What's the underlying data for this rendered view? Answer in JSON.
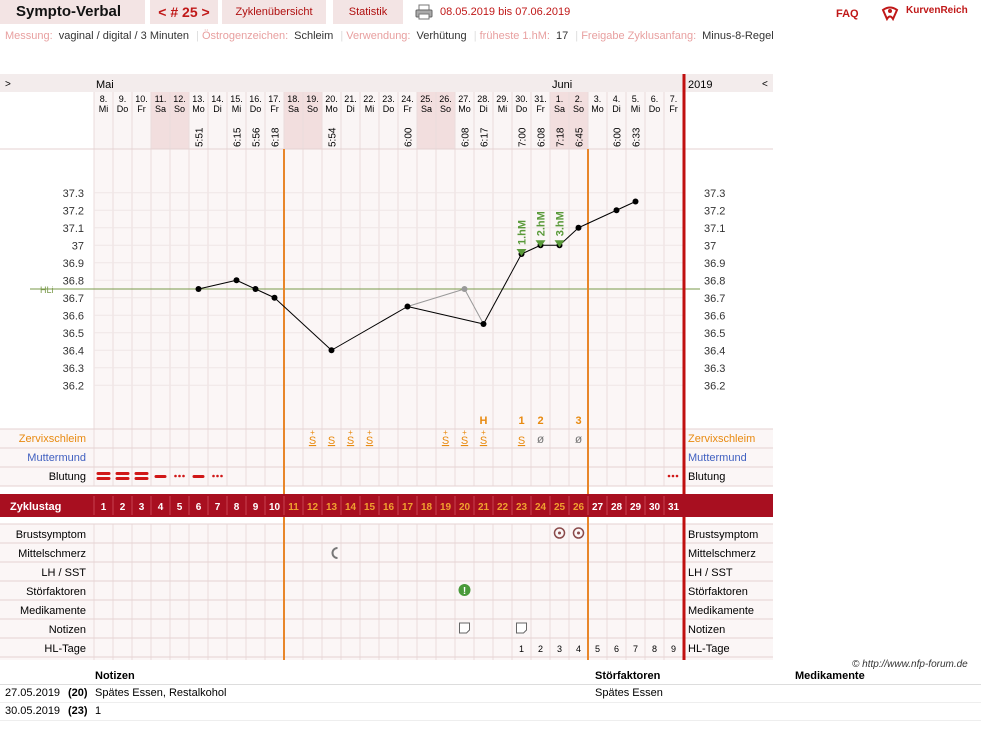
{
  "header": {
    "brand": "Sympto-Verbal",
    "cycle_nav": "< # 25 >",
    "tab_overview": "Zyklenübersicht",
    "tab_stats": "Statistik",
    "date_range": "08.05.2019 bis 07.06.2019",
    "faq": "FAQ",
    "logo_text": "KurvenReich"
  },
  "settings": [
    {
      "key": "Messung:",
      "value": "vaginal / digital / 3 Minuten"
    },
    {
      "key": "Östrogenzeichen:",
      "value": "Schleim"
    },
    {
      "key": "Verwendung:",
      "value": "Verhütung"
    },
    {
      "key": "früheste 1.hM:",
      "value": "17"
    },
    {
      "key": "Freigabe Zyklusanfang:",
      "value": "Minus-8-Regel"
    }
  ],
  "chart_data": {
    "type": "line",
    "nav_prev": ">",
    "nav_next": "<",
    "months": [
      {
        "label": "Mai",
        "day_index": 0
      },
      {
        "label": "Juni",
        "day_index": 24
      }
    ],
    "year": "2019",
    "dates": [
      "8.",
      "9.",
      "10.",
      "11.",
      "12.",
      "13.",
      "14.",
      "15.",
      "16.",
      "17.",
      "18.",
      "19.",
      "20.",
      "21.",
      "22.",
      "23.",
      "24.",
      "25.",
      "26.",
      "27.",
      "28.",
      "29.",
      "30.",
      "31.",
      "1.",
      "2.",
      "3.",
      "4.",
      "5.",
      "6.",
      "7."
    ],
    "weekdays": [
      "Mi",
      "Do",
      "Fr",
      "Sa",
      "So",
      "Mo",
      "Di",
      "Mi",
      "Do",
      "Fr",
      "Sa",
      "So",
      "Mo",
      "Di",
      "Mi",
      "Do",
      "Fr",
      "Sa",
      "So",
      "Mo",
      "Di",
      "Mi",
      "Do",
      "Fr",
      "Sa",
      "So",
      "Mo",
      "Di",
      "Mi",
      "Do",
      "Fr"
    ],
    "times": [
      "",
      "",
      "",
      "",
      "",
      "5:51",
      "",
      "6:15",
      "5:56",
      "6:18",
      "",
      "",
      "5:54",
      "",
      "",
      "",
      "6:00",
      "",
      "",
      "6:08",
      "6:17",
      "",
      "7:00",
      "6:08",
      "7:18",
      "6:45",
      "",
      "6:00",
      "6:33",
      "",
      ""
    ],
    "cycle_days": [
      1,
      2,
      3,
      4,
      5,
      6,
      7,
      8,
      9,
      10,
      11,
      12,
      13,
      14,
      15,
      16,
      17,
      18,
      19,
      20,
      21,
      22,
      23,
      24,
      25,
      26,
      27,
      28,
      29,
      30,
      31
    ],
    "temperatures": [
      null,
      null,
      null,
      null,
      null,
      36.75,
      null,
      36.8,
      36.75,
      36.7,
      null,
      null,
      36.4,
      null,
      null,
      null,
      36.65,
      null,
      null,
      36.75,
      36.55,
      null,
      36.95,
      37.0,
      37.0,
      37.1,
      null,
      37.2,
      37.25,
      null,
      null
    ],
    "excluded_days": [
      19
    ],
    "ylim": [
      36.1,
      37.4
    ],
    "yticks": [
      36.2,
      36.3,
      36.4,
      36.5,
      36.6,
      36.7,
      36.8,
      36.9,
      37.0,
      37.1,
      37.2,
      37.3
    ],
    "ytick_labels": [
      "36.2",
      "36.3",
      "36.4",
      "36.5",
      "36.6",
      "36.7",
      "36.8",
      "36.9",
      "37",
      "37.1",
      "37.2",
      "37.3"
    ],
    "coverline": {
      "label": "HLi",
      "value": 36.75
    },
    "high_measurements": [
      {
        "day_index": 22,
        "label": "1.hM"
      },
      {
        "day_index": 23,
        "label": "2.hM"
      },
      {
        "day_index": 24,
        "label": "3.hM"
      }
    ],
    "cycle_start_line_day": 9,
    "post_ovulatory_line_day": 26,
    "mucus_peak_markers": [
      {
        "day_index": 20,
        "label": "H"
      },
      {
        "day_index": 22,
        "label": "1"
      },
      {
        "day_index": 23,
        "label": "2"
      },
      {
        "day_index": 25,
        "label": "3"
      }
    ],
    "mucus": [
      "",
      "",
      "",
      "",
      "",
      "",
      "",
      "",
      "",
      "",
      "",
      "S+",
      "S",
      "S+",
      "S+",
      "",
      "",
      "",
      "S+",
      "S+",
      "S+",
      "",
      "S",
      "ø",
      "",
      "ø",
      "",
      "",
      "",
      "",
      ""
    ],
    "bleeding": [
      "heavy",
      "heavy",
      "heavy",
      "medium",
      "spot",
      "medium",
      "spot",
      "",
      "",
      "",
      "",
      "",
      "",
      "",
      "",
      "",
      "",
      "",
      "",
      "",
      "",
      "",
      "",
      "",
      "",
      "",
      "",
      "",
      "",
      "",
      ""
    ],
    "bleeding_right": "spot",
    "rows": {
      "mucus_label": "Zervixschleim",
      "cervix_label": "Muttermund",
      "bleeding_label": "Blutung",
      "cycle_day_label": "Zyklustag",
      "breast_label": "Brustsymptom",
      "mittelschmerz_label": "Mittelschmerz",
      "lh_label": "LH / SST",
      "disruption_label": "Störfaktoren",
      "medication_label": "Medikamente",
      "notes_label": "Notizen",
      "hl_days_label": "HL-Tage"
    },
    "breast_symptom_days": [
      24,
      25
    ],
    "mittelschmerz_days": [
      12
    ],
    "disruption_days": [
      19
    ],
    "note_days": [
      19,
      22
    ],
    "hl_days": [
      "",
      "",
      "",
      "",
      "",
      "",
      "",
      "",
      "",
      "",
      "",
      "",
      "",
      "",
      "",
      "",
      "",
      "",
      "",
      "",
      "",
      "",
      "1",
      "2",
      "3",
      "4",
      "5",
      "6",
      "7",
      "8",
      "9"
    ],
    "copyright": "© http://www.nfp-forum.de"
  },
  "notes_table": {
    "headers": {
      "notes": "Notizen",
      "disruptions": "Störfaktoren",
      "medication": "Medikamente"
    },
    "rows": [
      {
        "date": "27.05.2019",
        "cycle_day": "(20)",
        "note": "Spätes Essen, Restalkohol",
        "disruption": "Spätes Essen",
        "medication": ""
      },
      {
        "date": "30.05.2019",
        "cycle_day": "(23)",
        "note": "1",
        "disruption": "",
        "medication": ""
      }
    ]
  }
}
